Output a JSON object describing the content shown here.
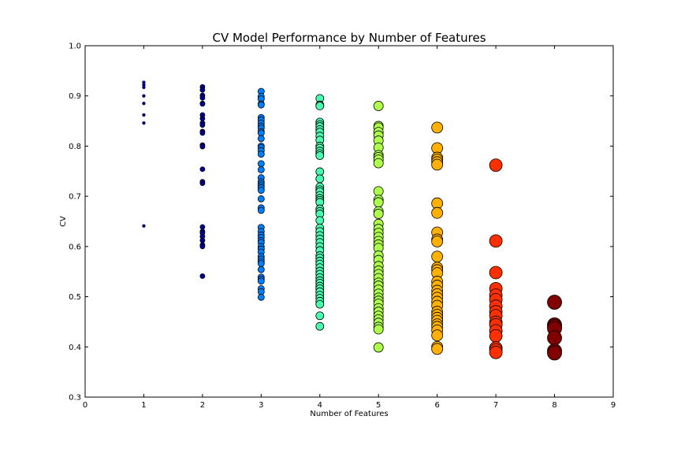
{
  "chart_data": {
    "type": "scatter",
    "title": "CV Model Performance by Number of Features",
    "xlabel": "Number of Features",
    "ylabel": "CV",
    "xlim": [
      0,
      9
    ],
    "ylim": [
      0.3,
      1.0
    ],
    "xticks": [
      "0",
      "1",
      "2",
      "3",
      "4",
      "5",
      "6",
      "7",
      "8",
      "9"
    ],
    "yticks": [
      "0.3",
      "0.4",
      "0.5",
      "0.6",
      "0.7",
      "0.8",
      "0.9",
      "1.0"
    ],
    "grid": false,
    "series": [
      {
        "x": 1,
        "color": "#00007f",
        "values": [
          0.927,
          0.922,
          0.917,
          0.9,
          0.885,
          0.862,
          0.846,
          0.641
        ]
      },
      {
        "x": 2,
        "color": "#000096",
        "values": [
          0.918,
          0.912,
          0.901,
          0.896,
          0.885,
          0.884,
          0.862,
          0.855,
          0.846,
          0.842,
          0.829,
          0.826,
          0.802,
          0.799,
          0.754,
          0.729,
          0.726,
          0.639,
          0.63,
          0.627,
          0.62,
          0.612,
          0.603,
          0.6,
          0.541
        ]
      },
      {
        "x": 3,
        "color": "#0080ff",
        "values": [
          0.909,
          0.899,
          0.894,
          0.884,
          0.882,
          0.857,
          0.852,
          0.846,
          0.84,
          0.836,
          0.829,
          0.826,
          0.815,
          0.8,
          0.797,
          0.791,
          0.784,
          0.765,
          0.753,
          0.737,
          0.729,
          0.725,
          0.721,
          0.717,
          0.712,
          0.695,
          0.677,
          0.672,
          0.638,
          0.63,
          0.623,
          0.618,
          0.612,
          0.608,
          0.6,
          0.595,
          0.589,
          0.58,
          0.575,
          0.57,
          0.566,
          0.554,
          0.539,
          0.535,
          0.531,
          0.516,
          0.51,
          0.499
        ]
      },
      {
        "x": 4,
        "color": "#49ffad",
        "values": [
          0.895,
          0.882,
          0.88,
          0.848,
          0.843,
          0.839,
          0.833,
          0.828,
          0.82,
          0.812,
          0.8,
          0.796,
          0.79,
          0.785,
          0.781,
          0.749,
          0.735,
          0.719,
          0.713,
          0.709,
          0.702,
          0.696,
          0.692,
          0.688,
          0.675,
          0.67,
          0.665,
          0.652,
          0.637,
          0.63,
          0.622,
          0.615,
          0.608,
          0.6,
          0.592,
          0.582,
          0.577,
          0.571,
          0.565,
          0.558,
          0.551,
          0.545,
          0.538,
          0.532,
          0.527,
          0.521,
          0.516,
          0.51,
          0.503,
          0.497,
          0.491,
          0.485,
          0.462,
          0.441
        ]
      },
      {
        "x": 5,
        "color": "#adff49",
        "values": [
          0.88,
          0.84,
          0.837,
          0.828,
          0.821,
          0.811,
          0.797,
          0.782,
          0.778,
          0.773,
          0.766,
          0.71,
          0.693,
          0.688,
          0.67,
          0.665,
          0.645,
          0.635,
          0.627,
          0.619,
          0.611,
          0.604,
          0.597,
          0.582,
          0.573,
          0.561,
          0.552,
          0.545,
          0.537,
          0.528,
          0.522,
          0.514,
          0.506,
          0.498,
          0.492,
          0.486,
          0.477,
          0.47,
          0.462,
          0.455,
          0.448,
          0.44,
          0.435,
          0.399
        ]
      },
      {
        "x": 6,
        "color": "#ffb000",
        "values": [
          0.837,
          0.796,
          0.777,
          0.773,
          0.768,
          0.763,
          0.686,
          0.667,
          0.628,
          0.614,
          0.61,
          0.58,
          0.558,
          0.553,
          0.547,
          0.53,
          0.522,
          0.512,
          0.505,
          0.498,
          0.49,
          0.482,
          0.47,
          0.464,
          0.458,
          0.452,
          0.445,
          0.44,
          0.433,
          0.423,
          0.4,
          0.396
        ]
      },
      {
        "x": 7,
        "color": "#ff3000",
        "values": [
          0.762,
          0.611,
          0.548,
          0.516,
          0.503,
          0.494,
          0.481,
          0.47,
          0.462,
          0.449,
          0.444,
          0.432,
          0.422,
          0.398,
          0.394,
          0.389
        ]
      },
      {
        "x": 8,
        "color": "#800000",
        "values": [
          0.489,
          0.444,
          0.441,
          0.437,
          0.418,
          0.392,
          0.388
        ]
      }
    ],
    "marker_sizes": [
      2,
      3,
      4,
      5,
      6,
      7,
      8,
      9
    ]
  }
}
